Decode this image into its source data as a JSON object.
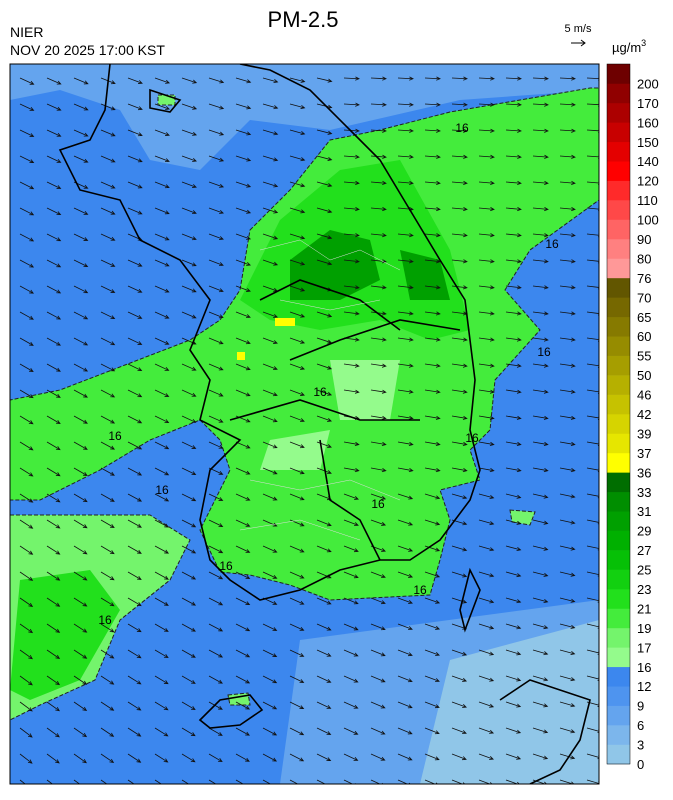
{
  "header": {
    "title": "PM-2.5",
    "agency": "NIER",
    "datetime": "NOV 20 2025 17:00 KST",
    "wind_scale": "5 m/s"
  },
  "colorbar": {
    "unit": "µg/m",
    "unit_exponent": "3",
    "levels": [
      0,
      3,
      6,
      9,
      12,
      16,
      17,
      19,
      21,
      23,
      25,
      27,
      29,
      31,
      33,
      36,
      37,
      39,
      42,
      46,
      50,
      55,
      60,
      65,
      70,
      76,
      80,
      90,
      100,
      110,
      120,
      140,
      150,
      160,
      170,
      200
    ],
    "colors": [
      "#90c6e8",
      "#7cb6ec",
      "#64a4ee",
      "#4e94ef",
      "#3c87ee",
      "#94fb8c",
      "#74f46c",
      "#44ec3c",
      "#22e01c",
      "#12d010",
      "#06c006",
      "#00b000",
      "#00a000",
      "#008e00",
      "#006e00",
      "#ffff00",
      "#e6e600",
      "#d6d400",
      "#c6c200",
      "#b6b000",
      "#a69e00",
      "#968c00",
      "#867a00",
      "#766800",
      "#625600",
      "#ff9898",
      "#ff8080",
      "#ff6464",
      "#ff4848",
      "#ff2a2a",
      "#ff0000",
      "#e40000",
      "#c80000",
      "#ac0000",
      "#900000",
      "#6e0000"
    ]
  },
  "contour_labels": [
    "16",
    "16",
    "16",
    "16",
    "16",
    "16",
    "16",
    "16",
    "16",
    "16",
    "16"
  ]
}
